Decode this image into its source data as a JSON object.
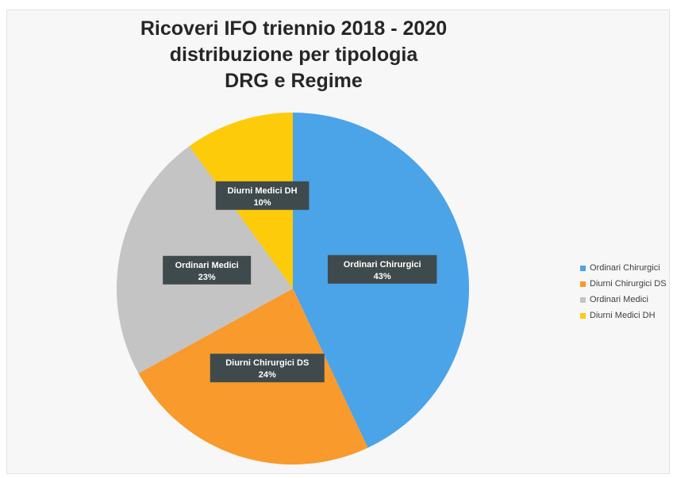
{
  "chart_data": {
    "type": "pie",
    "title_lines": [
      "Ricoveri IFO triennio 2018 - 2020",
      "distribuzione per tipologia",
      "DRG e Regime"
    ],
    "slices": [
      {
        "label": "Ordinari Chirurgici",
        "value": 43,
        "value_label": "43%",
        "color": "#4ba3e8"
      },
      {
        "label": "Diurni Chirurgici DS",
        "value": 24,
        "value_label": "24%",
        "color": "#f89a2c"
      },
      {
        "label": "Ordinari Medici",
        "value": 23,
        "value_label": "23%",
        "color": "#c4c4c4"
      },
      {
        "label": "Diurni Medici DH",
        "value": 10,
        "value_label": "10%",
        "color": "#fdcb0a"
      }
    ],
    "legend_position": "right",
    "label_box_color": "#3f4a4c",
    "label_text_color": "#ffffff"
  }
}
